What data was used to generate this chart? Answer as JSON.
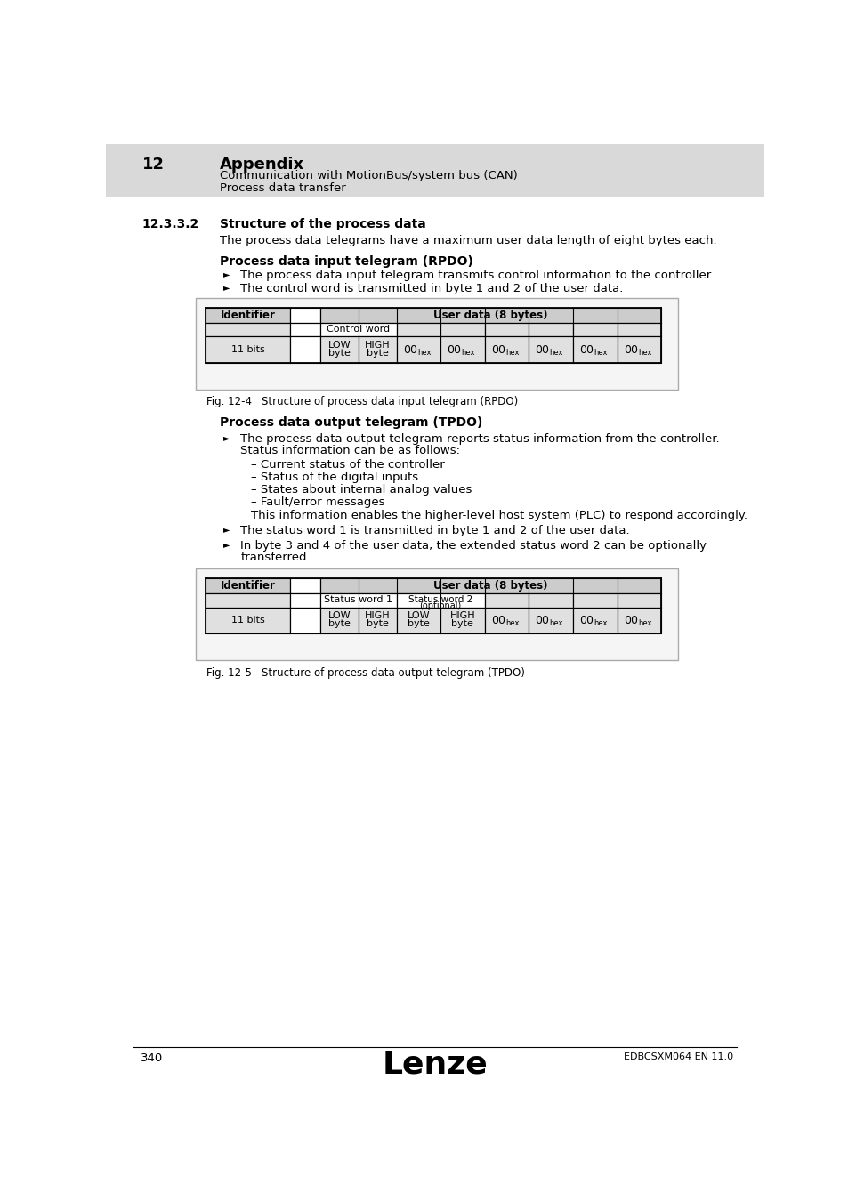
{
  "page_bg": "#ffffff",
  "header_bg": "#d9d9d9",
  "header_number": "12",
  "header_title": "Appendix",
  "header_sub1": "Communication with MotionBus/system bus (CAN)",
  "header_sub2": "Process data transfer",
  "section_number": "12.3.3.2",
  "section_title": "Structure of the process data",
  "section_intro": "The process data telegrams have a maximum user data length of eight bytes each.",
  "rpdo_title": "Process data input telegram (RPDO)",
  "rpdo_bullet1": "The process data input telegram transmits control information to the controller.",
  "rpdo_bullet2": "The control word is transmitted in byte 1 and 2 of the user data.",
  "rpdo_fig_label": "Fig. 12-4",
  "rpdo_fig_caption": "Structure of process data input telegram (RPDO)",
  "tpdo_title": "Process data output telegram (TPDO)",
  "tpdo_bullet1a": "The process data output telegram reports status information from the controller.",
  "tpdo_bullet1b": "Status information can be as follows:",
  "tpdo_sub1": "– Current status of the controller",
  "tpdo_sub2": "– Status of the digital inputs",
  "tpdo_sub3": "– States about internal analog values",
  "tpdo_sub4": "– Fault/error messages",
  "tpdo_subtext": "This information enables the higher-level host system (PLC) to respond accordingly.",
  "tpdo_bullet2": "The status word 1 is transmitted in byte 1 and 2 of the user data.",
  "tpdo_bullet3a": "In byte 3 and 4 of the user data, the extended status word 2 can be optionally",
  "tpdo_bullet3b": "transferred.",
  "tpdo_fig_label": "Fig. 12-5",
  "tpdo_fig_caption": "Structure of process data output telegram (TPDO)",
  "footer_page": "340",
  "footer_logo": "Lenze",
  "footer_code": "EDBCSXM064 EN 11.0",
  "cell_bg": "#e0e0e0",
  "header_cell_bg": "#cccccc",
  "white": "#ffffff",
  "table_outer_bg": "#f5f5f5",
  "table_outer_border": "#aaaaaa"
}
